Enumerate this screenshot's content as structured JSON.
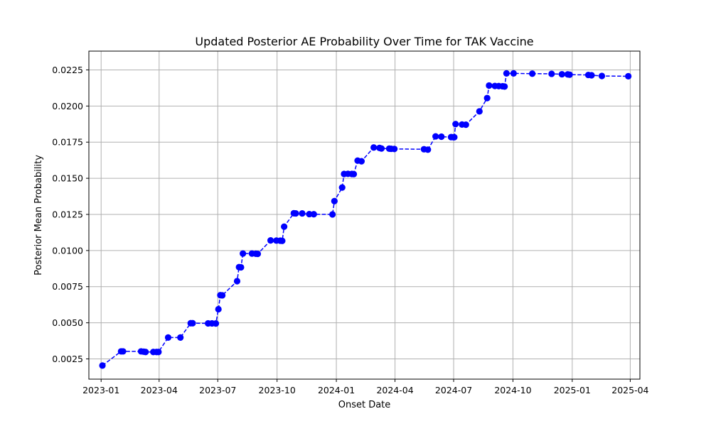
{
  "chart_data": {
    "type": "line",
    "title": "Updated Posterior AE Probability Over Time for TAK Vaccine",
    "xlabel": "Onset Date",
    "ylabel": "Posterior Mean Probability",
    "x_type": "date",
    "xlim": [
      "2022-12-13",
      "2025-04-16"
    ],
    "ylim": [
      0.0011,
      0.0238
    ],
    "x_ticks": [
      {
        "value": "2023-01-01",
        "label": "2023-01"
      },
      {
        "value": "2023-04-01",
        "label": "2023-04"
      },
      {
        "value": "2023-07-01",
        "label": "2023-07"
      },
      {
        "value": "2023-10-01",
        "label": "2023-10"
      },
      {
        "value": "2024-01-01",
        "label": "2024-01"
      },
      {
        "value": "2024-04-01",
        "label": "2024-04"
      },
      {
        "value": "2024-07-01",
        "label": "2024-07"
      },
      {
        "value": "2024-10-01",
        "label": "2024-10"
      },
      {
        "value": "2025-01-01",
        "label": "2025-01"
      },
      {
        "value": "2025-04-01",
        "label": "2025-04"
      }
    ],
    "y_ticks": [
      {
        "value": 0.0025,
        "label": "0.0025"
      },
      {
        "value": 0.005,
        "label": "0.0050"
      },
      {
        "value": 0.0075,
        "label": "0.0075"
      },
      {
        "value": 0.01,
        "label": "0.0100"
      },
      {
        "value": 0.0125,
        "label": "0.0125"
      },
      {
        "value": 0.015,
        "label": "0.0150"
      },
      {
        "value": 0.0175,
        "label": "0.0175"
      },
      {
        "value": 0.02,
        "label": "0.0200"
      },
      {
        "value": 0.0225,
        "label": "0.0225"
      }
    ],
    "grid": true,
    "line_style": "dashed",
    "marker": "circle",
    "color": "#0000ff",
    "series": [
      {
        "x": [
          "2023-01-03",
          "2023-02-01",
          "2023-02-04",
          "2023-03-04",
          "2023-03-08",
          "2023-03-11",
          "2023-03-23",
          "2023-03-28",
          "2023-03-31",
          "2023-04-15",
          "2023-05-04",
          "2023-05-20",
          "2023-05-23",
          "2023-06-16",
          "2023-06-22",
          "2023-06-28",
          "2023-07-02",
          "2023-07-05",
          "2023-07-08",
          "2023-07-31",
          "2023-08-03",
          "2023-08-06",
          "2023-08-09",
          "2023-08-23",
          "2023-08-29",
          "2023-09-01",
          "2023-09-21",
          "2023-09-30",
          "2023-10-06",
          "2023-10-09",
          "2023-10-12",
          "2023-10-27",
          "2023-10-30",
          "2023-11-09",
          "2023-11-20",
          "2023-11-27",
          "2023-12-26",
          "2023-12-29",
          "2024-01-10",
          "2024-01-13",
          "2024-01-19",
          "2024-01-25",
          "2024-01-28",
          "2024-02-03",
          "2024-02-09",
          "2024-02-28",
          "2024-03-08",
          "2024-03-11",
          "2024-03-23",
          "2024-03-26",
          "2024-03-31",
          "2024-05-16",
          "2024-05-22",
          "2024-06-03",
          "2024-06-12",
          "2024-06-27",
          "2024-07-01",
          "2024-07-02",
          "2024-07-04",
          "2024-07-14",
          "2024-07-20",
          "2024-08-10",
          "2024-08-22",
          "2024-08-25",
          "2024-09-03",
          "2024-09-09",
          "2024-09-15",
          "2024-09-18",
          "2024-09-21",
          "2024-10-02",
          "2024-10-31",
          "2024-11-30",
          "2024-12-16",
          "2024-12-25",
          "2024-12-28",
          "2025-01-26",
          "2025-01-31",
          "2025-02-16",
          "2025-03-29"
        ],
        "y": [
          0.00204,
          0.00302,
          0.00302,
          0.00302,
          0.003,
          0.00298,
          0.00298,
          0.00298,
          0.00298,
          0.00398,
          0.00398,
          0.00497,
          0.00497,
          0.00496,
          0.00496,
          0.00495,
          0.00594,
          0.00691,
          0.0069,
          0.00788,
          0.00885,
          0.00884,
          0.00979,
          0.00979,
          0.00978,
          0.00977,
          0.0107,
          0.01069,
          0.01068,
          0.01067,
          0.01165,
          0.01258,
          0.01257,
          0.01257,
          0.01252,
          0.01251,
          0.0125,
          0.01342,
          0.01436,
          0.0153,
          0.01531,
          0.0153,
          0.01529,
          0.01622,
          0.01618,
          0.01713,
          0.0171,
          0.01706,
          0.01705,
          0.01704,
          0.01703,
          0.01701,
          0.01698,
          0.0179,
          0.01788,
          0.01785,
          0.01784,
          0.01784,
          0.01875,
          0.01872,
          0.01871,
          0.01963,
          0.02055,
          0.02142,
          0.02139,
          0.02138,
          0.02137,
          0.02135,
          0.02226,
          0.02226,
          0.02224,
          0.02223,
          0.0222,
          0.02219,
          0.02217,
          0.02215,
          0.02213,
          0.02208,
          0.02206
        ]
      }
    ]
  }
}
